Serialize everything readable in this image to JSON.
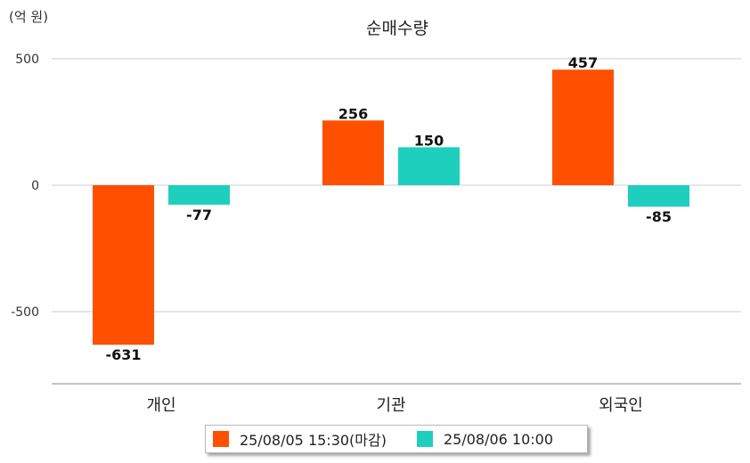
{
  "chart_data": {
    "type": "bar",
    "title": "순매수량",
    "unit_label": "(억 원)",
    "categories": [
      "개인",
      "기관",
      "외국인"
    ],
    "series": [
      {
        "name": "25/08/05 15:30(마감)",
        "color": "#ff5000",
        "values": [
          -631,
          256,
          457
        ]
      },
      {
        "name": "25/08/06 10:00",
        "color": "#1ecfbe",
        "values": [
          -77,
          150,
          -85
        ]
      }
    ],
    "yticks": [
      500,
      0,
      -500
    ],
    "ylim": [
      -790,
      500
    ],
    "grid": true,
    "legend_position": "bottom"
  }
}
